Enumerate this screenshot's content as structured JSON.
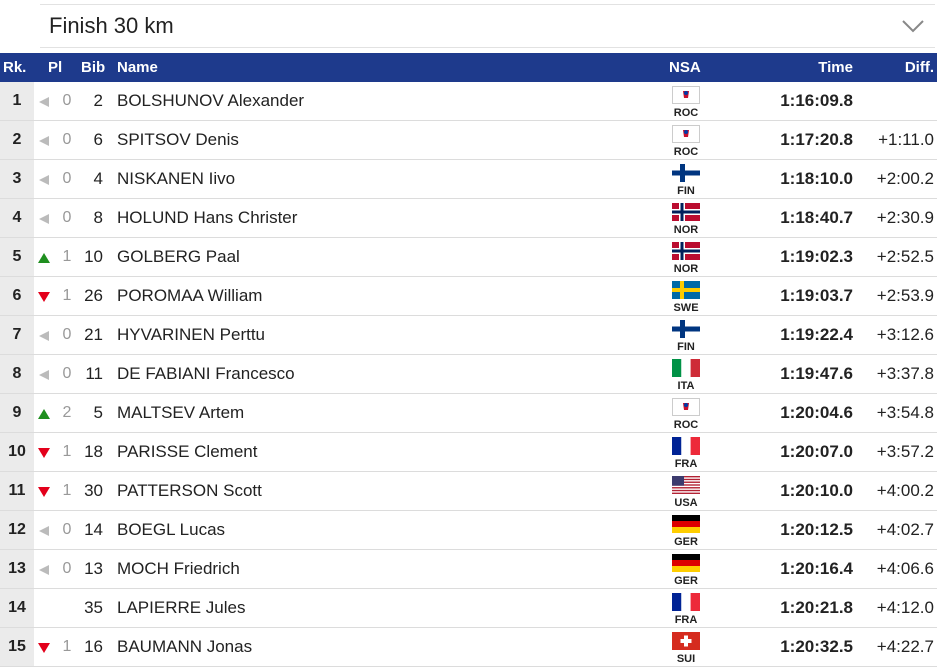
{
  "dropdown": {
    "label": "Finish 30 km"
  },
  "table": {
    "columns": [
      "Rk.",
      "Pl",
      "Bib",
      "Name",
      "NSA",
      "Time",
      "Diff."
    ],
    "rows": [
      {
        "rank": "1",
        "trend": "same",
        "pl": "0",
        "bib": "2",
        "name": "BOLSHUNOV Alexander",
        "nsa": "ROC",
        "time": "1:16:09.8",
        "diff": null
      },
      {
        "rank": "2",
        "trend": "same",
        "pl": "0",
        "bib": "6",
        "name": "SPITSOV Denis",
        "nsa": "ROC",
        "time": "1:17:20.8",
        "diff": "+1:11.0"
      },
      {
        "rank": "3",
        "trend": "same",
        "pl": "0",
        "bib": "4",
        "name": "NISKANEN Iivo",
        "nsa": "FIN",
        "time": "1:18:10.0",
        "diff": "+2:00.2"
      },
      {
        "rank": "4",
        "trend": "same",
        "pl": "0",
        "bib": "8",
        "name": "HOLUND Hans Christer",
        "nsa": "NOR",
        "time": "1:18:40.7",
        "diff": "+2:30.9"
      },
      {
        "rank": "5",
        "trend": "up",
        "pl": "1",
        "bib": "10",
        "name": "GOLBERG Paal",
        "nsa": "NOR",
        "time": "1:19:02.3",
        "diff": "+2:52.5"
      },
      {
        "rank": "6",
        "trend": "down",
        "pl": "1",
        "bib": "26",
        "name": "POROMAA William",
        "nsa": "SWE",
        "time": "1:19:03.7",
        "diff": "+2:53.9"
      },
      {
        "rank": "7",
        "trend": "same",
        "pl": "0",
        "bib": "21",
        "name": "HYVARINEN Perttu",
        "nsa": "FIN",
        "time": "1:19:22.4",
        "diff": "+3:12.6"
      },
      {
        "rank": "8",
        "trend": "same",
        "pl": "0",
        "bib": "11",
        "name": "DE FABIANI Francesco",
        "nsa": "ITA",
        "time": "1:19:47.6",
        "diff": "+3:37.8"
      },
      {
        "rank": "9",
        "trend": "up",
        "pl": "2",
        "bib": "5",
        "name": "MALTSEV Artem",
        "nsa": "ROC",
        "time": "1:20:04.6",
        "diff": "+3:54.8"
      },
      {
        "rank": "10",
        "trend": "down",
        "pl": "1",
        "bib": "18",
        "name": "PARISSE Clement",
        "nsa": "FRA",
        "time": "1:20:07.0",
        "diff": "+3:57.2"
      },
      {
        "rank": "11",
        "trend": "down",
        "pl": "1",
        "bib": "30",
        "name": "PATTERSON Scott",
        "nsa": "USA",
        "time": "1:20:10.0",
        "diff": "+4:00.2"
      },
      {
        "rank": "12",
        "trend": "same",
        "pl": "0",
        "bib": "14",
        "name": "BOEGL Lucas",
        "nsa": "GER",
        "time": "1:20:12.5",
        "diff": "+4:02.7"
      },
      {
        "rank": "13",
        "trend": "same",
        "pl": "0",
        "bib": "13",
        "name": "MOCH Friedrich",
        "nsa": "GER",
        "time": "1:20:16.4",
        "diff": "+4:06.6"
      },
      {
        "rank": "14",
        "trend": null,
        "pl": null,
        "bib": "35",
        "name": "LAPIERRE Jules",
        "nsa": "FRA",
        "time": "1:20:21.8",
        "diff": "+4:12.0"
      },
      {
        "rank": "15",
        "trend": "down",
        "pl": "1",
        "bib": "16",
        "name": "BAUMANN Jonas",
        "nsa": "SUI",
        "time": "1:20:32.5",
        "diff": "+4:22.7"
      }
    ]
  }
}
